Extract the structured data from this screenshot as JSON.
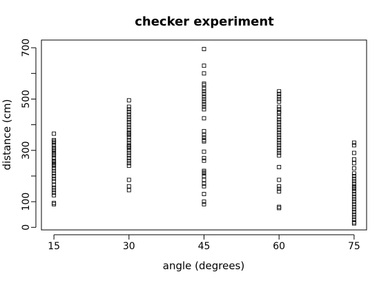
{
  "chart_data": {
    "type": "scatter",
    "title": "checker experiment",
    "xlabel": "angle (degrees)",
    "ylabel": "distance (cm)",
    "x_ticks": [
      15,
      30,
      45,
      60,
      75
    ],
    "y_ticks": [
      0,
      100,
      200,
      300,
      400,
      500,
      600,
      700
    ],
    "y_tick_labels": [
      "0",
      "100",
      "",
      "300",
      "",
      "500",
      "",
      "700"
    ],
    "xlim": [
      12.5,
      77.5
    ],
    "ylim": [
      -10,
      730
    ],
    "marker": "open-square",
    "groups": [
      {
        "x": 15,
        "y": [
          90,
          95,
          125,
          135,
          145,
          155,
          165,
          180,
          190,
          200,
          210,
          220,
          230,
          240,
          245,
          250,
          255,
          260,
          270,
          280,
          285,
          290,
          300,
          305,
          310,
          320,
          330,
          335,
          340,
          365
        ]
      },
      {
        "x": 30,
        "y": [
          145,
          160,
          185,
          240,
          250,
          260,
          270,
          280,
          290,
          300,
          310,
          315,
          320,
          330,
          340,
          350,
          360,
          365,
          370,
          380,
          390,
          400,
          410,
          420,
          430,
          440,
          450,
          460,
          470,
          495
        ]
      },
      {
        "x": 45,
        "y": [
          90,
          100,
          130,
          160,
          170,
          185,
          200,
          210,
          215,
          220,
          260,
          270,
          295,
          335,
          340,
          350,
          360,
          375,
          425,
          460,
          470,
          480,
          490,
          500,
          510,
          520,
          530,
          540,
          555,
          560,
          600,
          630,
          695
        ]
      },
      {
        "x": 60,
        "y": [
          75,
          80,
          140,
          150,
          160,
          185,
          235,
          280,
          290,
          300,
          310,
          320,
          330,
          340,
          350,
          360,
          370,
          380,
          390,
          400,
          410,
          420,
          430,
          445,
          450,
          460,
          470,
          490,
          500,
          510,
          520,
          530
        ]
      },
      {
        "x": 75,
        "y": [
          15,
          20,
          30,
          40,
          50,
          60,
          70,
          80,
          90,
          100,
          110,
          120,
          130,
          140,
          150,
          155,
          160,
          170,
          180,
          190,
          200,
          210,
          230,
          250,
          265,
          290,
          320,
          330
        ]
      }
    ]
  }
}
